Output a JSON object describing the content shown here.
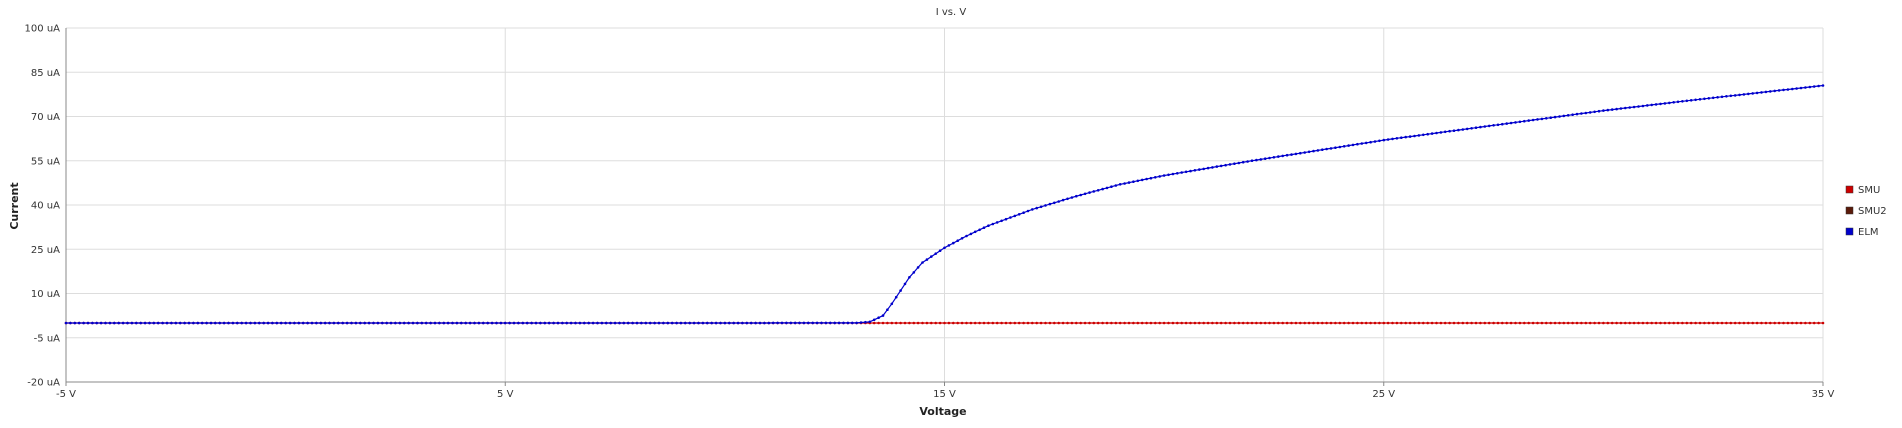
{
  "chart_data": {
    "type": "line",
    "title": "I vs. V",
    "xlabel": "Voltage",
    "ylabel": "Current",
    "xlim": [
      -5,
      35
    ],
    "ylim": [
      -20,
      100
    ],
    "x_ticks": [
      "-5 V",
      "5 V",
      "15 V",
      "25 V",
      "35 V"
    ],
    "x_tick_values": [
      -5,
      5,
      15,
      25,
      35
    ],
    "y_ticks": [
      "100 uA",
      "85 uA",
      "70 uA",
      "55 uA",
      "40 uA",
      "25 uA",
      "10 uA",
      "-5 uA",
      "-20 uA"
    ],
    "y_tick_values": [
      100,
      85,
      70,
      55,
      40,
      25,
      10,
      -5,
      -20
    ],
    "grid": true,
    "legend_position": "right",
    "series": [
      {
        "name": "SMU",
        "color": "#cc0000",
        "x": [
          -5,
          13.3,
          35
        ],
        "y": [
          0,
          0,
          0
        ]
      },
      {
        "name": "SMU2",
        "color": "#5a1a0a",
        "x": [],
        "y": []
      },
      {
        "name": "ELM",
        "color": "#0000cc",
        "x": [
          -5,
          0,
          5,
          10,
          13.0,
          13.3,
          13.6,
          13.8,
          14.0,
          14.2,
          14.5,
          15.0,
          15.5,
          16.0,
          17.0,
          18.0,
          19.0,
          20.0,
          22.0,
          25.0,
          28.0,
          30.0,
          32.0,
          35.0
        ],
        "y": [
          0,
          0,
          0,
          0,
          0.05,
          0.4,
          2.5,
          6.5,
          11.0,
          15.5,
          20.5,
          25.5,
          29.5,
          33.0,
          38.5,
          43.0,
          47.0,
          50.0,
          55.0,
          62.0,
          68.0,
          72.0,
          75.5,
          80.5
        ]
      }
    ]
  }
}
